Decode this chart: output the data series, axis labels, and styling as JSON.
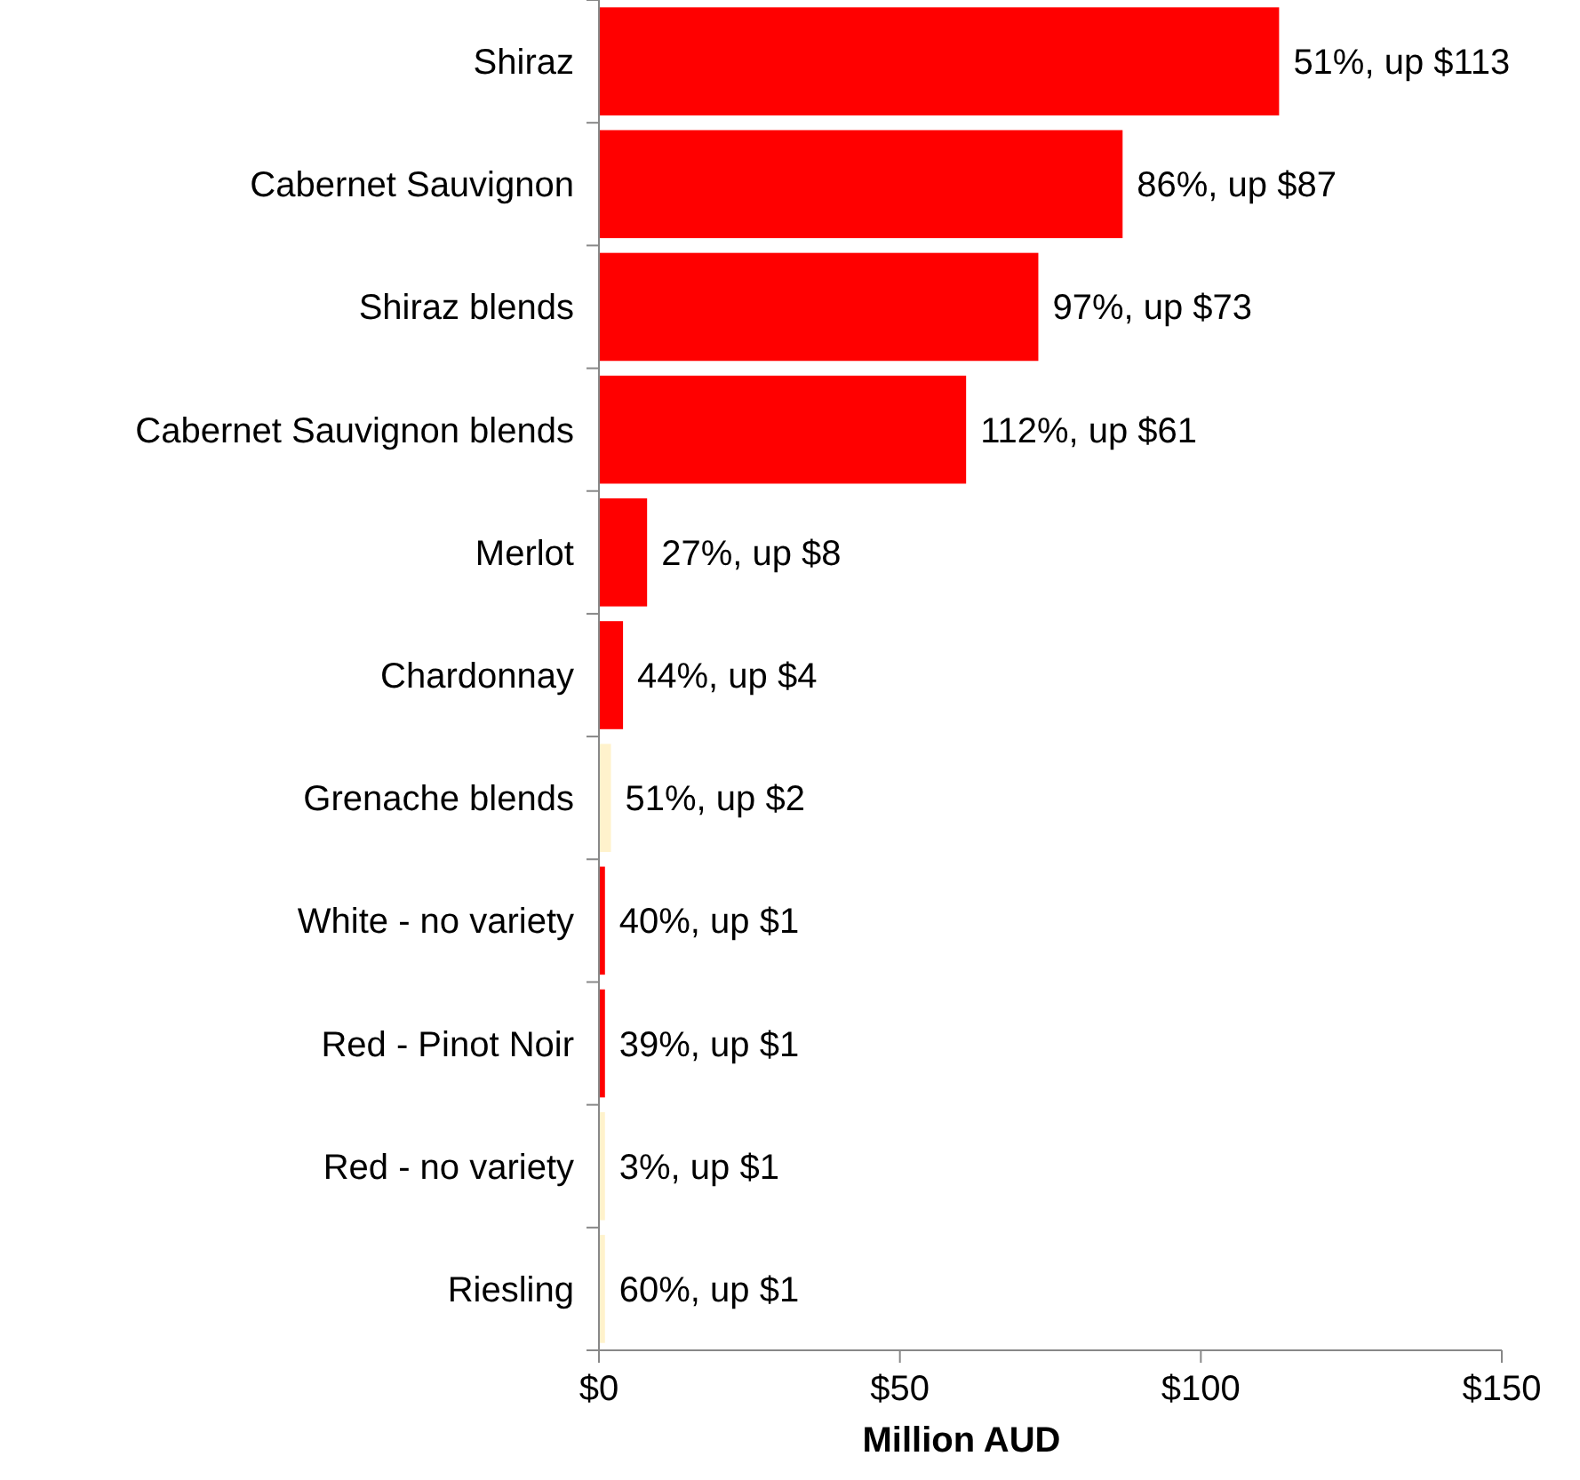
{
  "chart_data": {
    "type": "bar",
    "orientation": "horizontal",
    "xlabel": "Million AUD",
    "categories": [
      "Shiraz",
      "Cabernet Sauvignon",
      "Shiraz blends",
      "Cabernet Sauvignon blends",
      "Merlot",
      "Chardonnay",
      "Grenache blends",
      "White - no variety",
      "Red - Pinot Noir",
      "Red - no variety",
      "Riesling"
    ],
    "values": [
      113,
      87,
      73,
      61,
      8,
      4,
      2,
      1,
      1,
      1,
      1
    ],
    "colors": [
      "#ff0000",
      "#ff0000",
      "#ff0000",
      "#ff0000",
      "#ff0000",
      "#ff0000",
      "#fff2cc",
      "#ff0000",
      "#ff0000",
      "#fff2cc",
      "#fff2cc"
    ],
    "value_labels": [
      "51%, up $113",
      "86%, up $87",
      "97%, up $73",
      "112%, up $61",
      "27%, up $8",
      "44%, up $4",
      "51%, up $2",
      "40%, up $1",
      "39%, up $1",
      "3%, up $1",
      "60%, up $1"
    ],
    "xlim": [
      0,
      150
    ],
    "xticks": [
      {
        "value": 0,
        "label": "$0"
      },
      {
        "value": 50,
        "label": "$50"
      },
      {
        "value": 100,
        "label": "$100"
      },
      {
        "value": 150,
        "label": "$150"
      }
    ],
    "grid": false
  }
}
